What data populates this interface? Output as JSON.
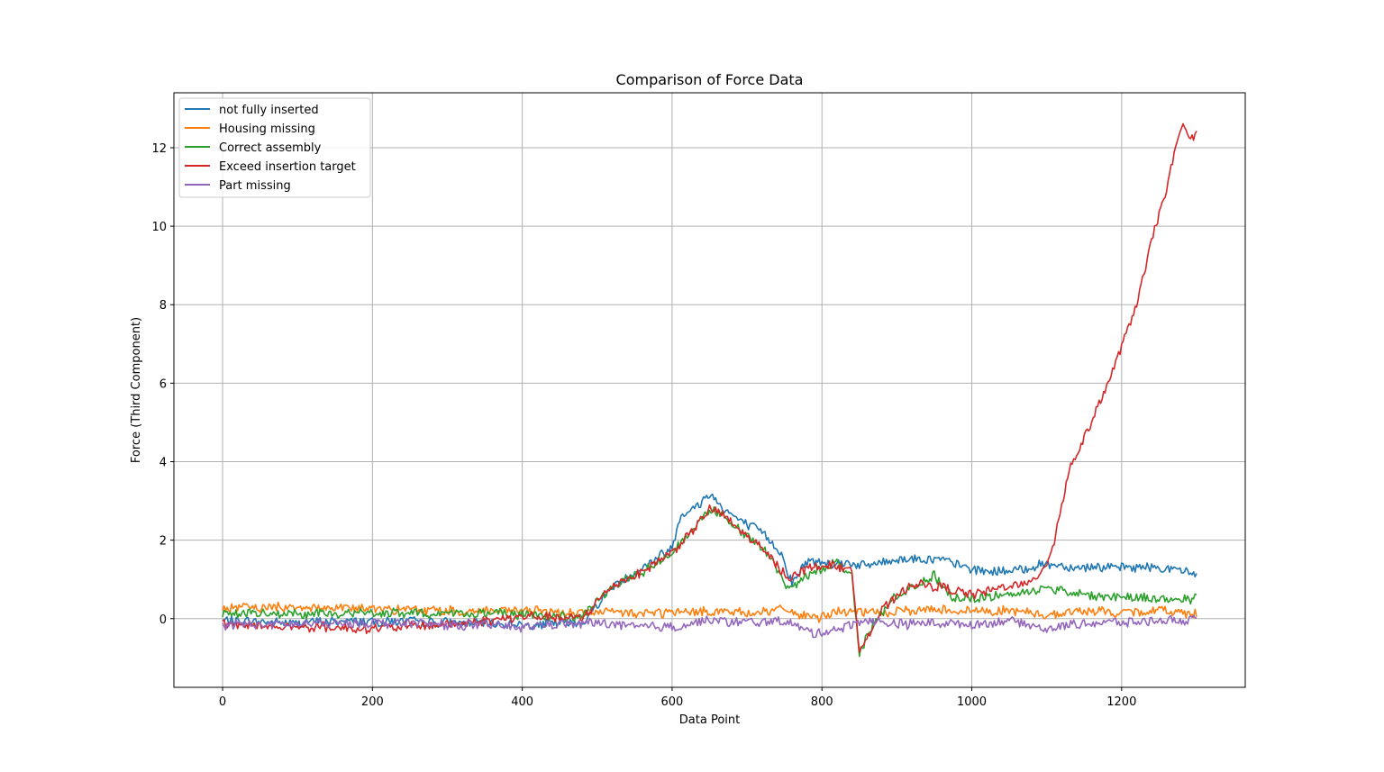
{
  "chart_data": {
    "type": "line",
    "title": "Comparison of Force Data",
    "xlabel": "Data Point",
    "ylabel": "Force (Third Component)",
    "xlim": [
      -65,
      1365
    ],
    "ylim": [
      -1.75,
      13.4
    ],
    "x_ticks": [
      0,
      200,
      400,
      600,
      800,
      1000,
      1200
    ],
    "y_ticks": [
      0,
      2,
      4,
      6,
      8,
      10,
      12
    ],
    "grid": true,
    "legend_position": "top-left",
    "series": [
      {
        "name": "not fully inserted",
        "color": "#1f77b4",
        "x": [
          0,
          100,
          200,
          300,
          400,
          480,
          520,
          560,
          600,
          612,
          630,
          650,
          670,
          690,
          720,
          745,
          760,
          780,
          800,
          830,
          860,
          900,
          950,
          1000,
          1050,
          1100,
          1150,
          1200,
          1250,
          1300
        ],
        "y": [
          -0.05,
          -0.1,
          -0.05,
          -0.1,
          -0.15,
          -0.1,
          0.8,
          1.3,
          1.8,
          2.7,
          2.8,
          3.2,
          2.8,
          2.5,
          2.2,
          1.7,
          0.9,
          1.45,
          1.45,
          1.4,
          1.35,
          1.5,
          1.55,
          1.25,
          1.2,
          1.4,
          1.3,
          1.3,
          1.3,
          1.15
        ]
      },
      {
        "name": "Housing missing",
        "color": "#ff7f0e",
        "x": [
          0,
          100,
          200,
          300,
          400,
          500,
          550,
          600,
          650,
          700,
          750,
          790,
          820,
          850,
          900,
          950,
          1000,
          1050,
          1100,
          1150,
          1200,
          1250,
          1300
        ],
        "y": [
          0.25,
          0.3,
          0.25,
          0.2,
          0.2,
          0.15,
          0.15,
          0.15,
          0.2,
          0.15,
          0.25,
          0.0,
          0.2,
          0.15,
          0.15,
          0.25,
          0.2,
          0.2,
          0.1,
          0.2,
          0.15,
          0.2,
          0.15
        ]
      },
      {
        "name": "Correct assembly",
        "color": "#2ca02c",
        "x": [
          0,
          100,
          200,
          300,
          400,
          480,
          520,
          560,
          600,
          630,
          650,
          670,
          700,
          730,
          755,
          790,
          820,
          840,
          850,
          870,
          900,
          950,
          975,
          1000,
          1050,
          1100,
          1150,
          1200,
          1250,
          1300
        ],
        "y": [
          0.15,
          0.1,
          0.15,
          0.15,
          0.1,
          0.05,
          0.8,
          1.2,
          1.7,
          2.3,
          2.8,
          2.6,
          2.1,
          1.6,
          0.75,
          1.2,
          1.45,
          1.1,
          -0.85,
          -0.1,
          0.6,
          1.1,
          0.55,
          0.5,
          0.6,
          0.8,
          0.6,
          0.55,
          0.5,
          0.5
        ]
      },
      {
        "name": "Exceed insertion target",
        "color": "#d62728",
        "x": [
          0,
          100,
          200,
          300,
          400,
          480,
          520,
          560,
          600,
          630,
          650,
          670,
          700,
          730,
          755,
          790,
          820,
          840,
          850,
          860,
          880,
          920,
          960,
          1000,
          1050,
          1080,
          1100,
          1110,
          1130,
          1160,
          1190,
          1220,
          1240,
          1260,
          1280,
          1290,
          1300
        ],
        "y": [
          -0.15,
          -0.2,
          -0.25,
          -0.15,
          0.05,
          0.0,
          0.85,
          1.2,
          1.7,
          2.3,
          2.8,
          2.6,
          2.1,
          1.6,
          1.05,
          1.35,
          1.35,
          1.2,
          -0.75,
          -0.5,
          0.2,
          0.9,
          0.8,
          0.6,
          0.85,
          0.9,
          1.4,
          2.0,
          3.8,
          5.0,
          6.4,
          8.0,
          9.6,
          11.0,
          12.6,
          12.2,
          12.4
        ]
      },
      {
        "name": "Part missing",
        "color": "#9467bd",
        "x": [
          0,
          100,
          200,
          300,
          400,
          500,
          550,
          600,
          650,
          700,
          750,
          790,
          830,
          860,
          900,
          950,
          1000,
          1050,
          1100,
          1150,
          1200,
          1250,
          1300
        ],
        "y": [
          -0.15,
          -0.15,
          -0.1,
          -0.15,
          -0.2,
          -0.1,
          -0.2,
          -0.2,
          -0.05,
          -0.1,
          -0.05,
          -0.4,
          -0.2,
          -0.05,
          -0.15,
          -0.1,
          -0.15,
          -0.05,
          -0.25,
          -0.1,
          -0.1,
          -0.05,
          -0.05
        ]
      }
    ]
  }
}
